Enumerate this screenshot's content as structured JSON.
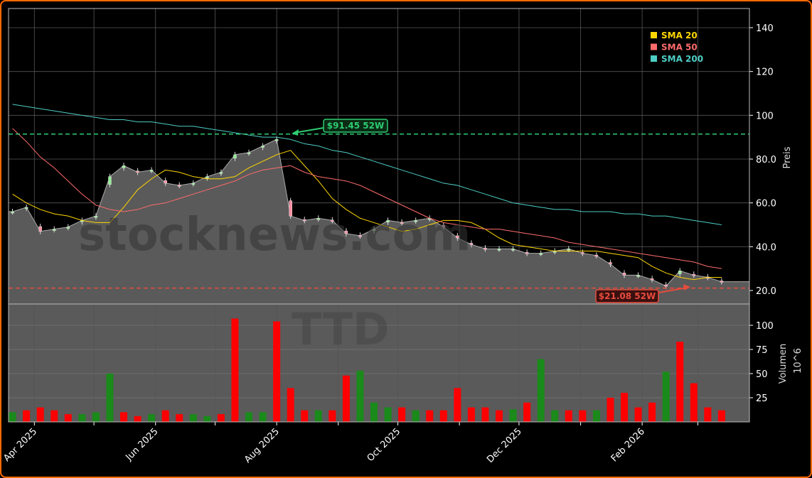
{
  "chart_data": [
    {
      "type": "line",
      "panel": "price",
      "ticker": "TTD",
      "ylabel": "Preis",
      "ylim": [
        12,
        148
      ],
      "yticks": [
        20.0,
        40.0,
        60.0,
        80.0,
        100,
        120,
        140
      ],
      "ytick_labels": [
        "20.0",
        "40.0",
        "60.0",
        "80.0",
        "100",
        "120",
        "140"
      ],
      "xlim": [
        "2025-03-19",
        "2026-03-27"
      ],
      "xticks": [
        "2025-04-01",
        "2025-05-01",
        "2025-06-01",
        "2025-07-01",
        "2025-08-01",
        "2025-09-01",
        "2025-10-01",
        "2025-11-01",
        "2025-12-01",
        "2026-01-01",
        "2026-02-01",
        "2026-03-01"
      ],
      "xtick_labels": [
        "Apr 2025",
        "",
        "Jun 2025",
        "",
        "Aug 2025",
        "",
        "Oct 2025",
        "",
        "Dec 2025",
        "",
        "Feb 2026",
        ""
      ],
      "grid": true,
      "dates_start": "2025-03-21",
      "dates_step_days": 7,
      "close": [
        56,
        58,
        47,
        48,
        49,
        52,
        54,
        72,
        77,
        74,
        75,
        69,
        68,
        69,
        72,
        74,
        82,
        83,
        86,
        89,
        54,
        52,
        53,
        52,
        46,
        45,
        48,
        52,
        51,
        52,
        53,
        49,
        44,
        41,
        39,
        39,
        39,
        37,
        37,
        38,
        39,
        37,
        36,
        32,
        27,
        27,
        25,
        22,
        29,
        27,
        26,
        24
      ],
      "series": [
        {
          "name": "SMA 20",
          "color": "#ffd700",
          "values": [
            64,
            60,
            57,
            55,
            54,
            52,
            51,
            51,
            58,
            66,
            71,
            75,
            74,
            72,
            71,
            71,
            72,
            76,
            79,
            82,
            84,
            77,
            70,
            62,
            57,
            53,
            51,
            49,
            47,
            48,
            50,
            52,
            52,
            51,
            48,
            44,
            41,
            40,
            39,
            38,
            38,
            38,
            38,
            37,
            36,
            35,
            31,
            28,
            26,
            25,
            26,
            26
          ]
        },
        {
          "name": "SMA 50",
          "color": "#ff6b6b",
          "values": [
            94,
            88,
            81,
            76,
            70,
            64,
            59,
            57,
            56,
            57,
            59,
            60,
            62,
            64,
            66,
            68,
            70,
            73,
            75,
            76,
            77,
            74,
            72,
            71,
            70,
            68,
            65,
            62,
            59,
            56,
            53,
            51,
            50,
            49,
            48,
            48,
            47,
            46,
            45,
            44,
            42,
            41,
            40,
            39,
            38,
            37,
            36,
            35,
            34,
            33,
            31,
            30
          ]
        },
        {
          "name": "SMA 200",
          "color": "#4ecdc4",
          "values": [
            105,
            104,
            103,
            102,
            101,
            100,
            99,
            98,
            98,
            97,
            97,
            96,
            95,
            95,
            94,
            93,
            92,
            91,
            90,
            90,
            89,
            87,
            86,
            84,
            83,
            81,
            79,
            77,
            75,
            73,
            71,
            69,
            68,
            66,
            64,
            62,
            60,
            59,
            58,
            57,
            57,
            56,
            56,
            56,
            55,
            55,
            54,
            54,
            53,
            52,
            51,
            50
          ]
        }
      ],
      "legend_position": "top-right",
      "annotations": [
        {
          "label": "$91.45 52W",
          "value": 91.45,
          "color": "#2ecc71",
          "kind": "52-week high"
        },
        {
          "label": "$21.08 52W",
          "value": 21.08,
          "color": "#e74c3c",
          "kind": "52-week low"
        }
      ],
      "watermark": "stocknews.com"
    },
    {
      "type": "bar",
      "panel": "volume",
      "ylabel": "Volumen",
      "yunit": "10^6",
      "yticks": [
        25,
        50,
        75,
        100
      ],
      "ytick_labels": [
        "25",
        "50",
        "75",
        "100"
      ],
      "ylim": [
        0,
        115
      ],
      "up_color": "#1a8a1a",
      "down_color": "#ff0000",
      "values": [
        10,
        12,
        15,
        12,
        8,
        8,
        10,
        50,
        10,
        6,
        8,
        12,
        8,
        8,
        6,
        8,
        107,
        10,
        10,
        104,
        35,
        12,
        12,
        12,
        48,
        53,
        20,
        15,
        15,
        12,
        12,
        12,
        35,
        15,
        15,
        12,
        13,
        20,
        65,
        12,
        12,
        12,
        12,
        25,
        30,
        15,
        20,
        52,
        83,
        40,
        15,
        12
      ],
      "direction": [
        "up",
        "down",
        "down",
        "down",
        "down",
        "up",
        "up",
        "up",
        "down",
        "down",
        "up",
        "down",
        "down",
        "up",
        "up",
        "down",
        "down",
        "up",
        "up",
        "down",
        "down",
        "down",
        "up",
        "down",
        "down",
        "up",
        "up",
        "up",
        "down",
        "up",
        "down",
        "down",
        "down",
        "down",
        "down",
        "down",
        "up",
        "down",
        "up",
        "up",
        "down",
        "down",
        "up",
        "down",
        "down",
        "down",
        "down",
        "up",
        "down",
        "down",
        "down",
        "down"
      ]
    }
  ]
}
